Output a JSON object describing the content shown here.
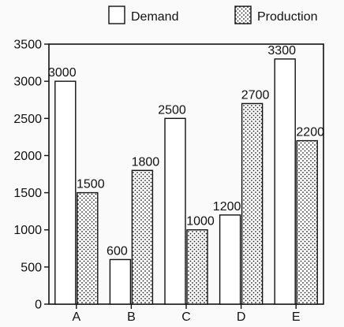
{
  "chart_data": {
    "type": "bar",
    "title": "",
    "xlabel": "",
    "ylabel": "",
    "categories": [
      "A",
      "B",
      "C",
      "D",
      "E"
    ],
    "series": [
      {
        "name": "Demand",
        "values": [
          3000,
          600,
          2500,
          1200,
          3300
        ],
        "fill": "white"
      },
      {
        "name": "Production",
        "values": [
          1500,
          1800,
          1000,
          2700,
          2200
        ],
        "fill": "dotted"
      }
    ],
    "ylim": [
      0,
      3500
    ],
    "yticks": [
      0,
      500,
      1000,
      1500,
      2000,
      2500,
      3000,
      3500
    ],
    "grid": false,
    "legend_position": "top",
    "colors": {
      "stroke": "#111111",
      "bar_fill": "#ffffff",
      "background": "#fafafa"
    }
  }
}
